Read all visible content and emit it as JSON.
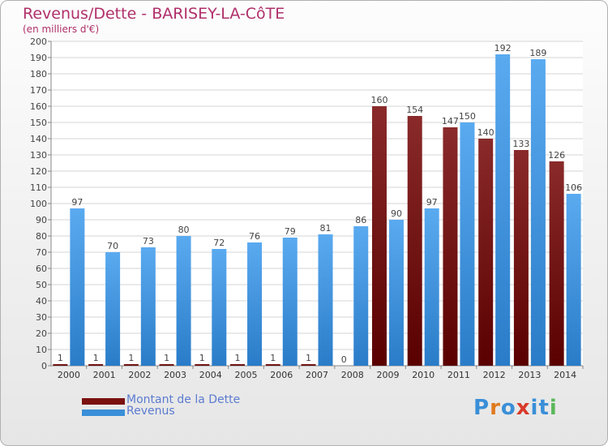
{
  "chart_data": {
    "type": "bar",
    "title": "Revenus/Dette - BARISEY-LA-CôTE",
    "subtitle": "(en milliers d'€)",
    "categories": [
      "2000",
      "2001",
      "2002",
      "2003",
      "2004",
      "2005",
      "2006",
      "2007",
      "2008",
      "2009",
      "2010",
      "2011",
      "2012",
      "2013",
      "2014"
    ],
    "series": [
      {
        "name": "Montant de la Dette",
        "color": "#7a1010",
        "values": [
          1,
          1,
          1,
          1,
          1,
          1,
          1,
          1,
          0,
          160,
          154,
          147,
          140,
          133,
          126
        ]
      },
      {
        "name": "Revenus",
        "color": "#3a8fd8",
        "values": [
          97,
          70,
          73,
          80,
          72,
          76,
          79,
          81,
          86,
          90,
          97,
          150,
          192,
          189,
          106
        ]
      }
    ],
    "ylim": [
      0,
      200
    ],
    "ytick_step": 10,
    "grid": "horizontal",
    "legend_position": "bottom-left"
  },
  "logo": {
    "text": "Proxiti",
    "letter_colors": [
      "#3a8fd8",
      "#e07a1f",
      "#3a8fd8",
      "#d83a2a",
      "#3a8fd8",
      "#3a8fd8",
      "#5cb85c"
    ]
  }
}
